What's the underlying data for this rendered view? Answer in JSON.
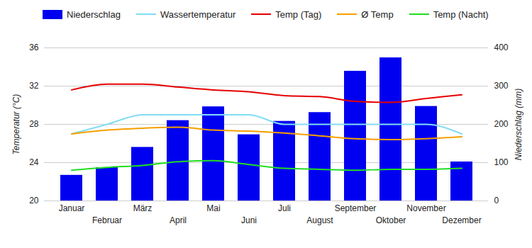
{
  "chart_data": {
    "type": "combo",
    "categories": [
      "Januar",
      "Februar",
      "März",
      "April",
      "Mai",
      "Juni",
      "Juli",
      "August",
      "September",
      "Oktober",
      "November",
      "Dezember"
    ],
    "series": [
      {
        "name": "Niederschlag",
        "type": "bar",
        "axis": "y2",
        "color": "#0000f0",
        "values": [
          67,
          87,
          140,
          210,
          246,
          173,
          208,
          231,
          339,
          374,
          247,
          102
        ]
      },
      {
        "name": "Wassertemperatur",
        "type": "line",
        "color": "#82dcf5",
        "values": [
          27.0,
          28.0,
          29.0,
          29.0,
          29.0,
          29.0,
          28.0,
          28.0,
          28.0,
          28.0,
          28.0,
          27.0
        ]
      },
      {
        "name": "Temp (Tag)",
        "type": "line",
        "color": "#e60000",
        "values": [
          31.6,
          32.2,
          32.2,
          31.9,
          31.6,
          31.4,
          31.0,
          30.9,
          30.4,
          30.3,
          30.7,
          31.1
        ]
      },
      {
        "name": "Ø Temp",
        "type": "line",
        "color": "#f5a000",
        "values": [
          27.0,
          27.4,
          27.6,
          27.7,
          27.4,
          27.3,
          27.1,
          26.8,
          26.5,
          26.4,
          26.5,
          26.7
        ]
      },
      {
        "name": "Temp (Nacht)",
        "type": "line",
        "color": "#22dd22",
        "values": [
          23.2,
          23.5,
          23.7,
          24.1,
          24.2,
          23.8,
          23.4,
          23.3,
          23.2,
          23.3,
          23.3,
          23.4
        ]
      }
    ],
    "ylabel": "Temperatur (°C)",
    "y2label": "Niederschlag (mm)",
    "ylim": [
      20,
      36
    ],
    "yticks": [
      20,
      24,
      28,
      32,
      36
    ],
    "y2lim": [
      0,
      400
    ],
    "y2ticks": [
      0,
      100,
      200,
      300,
      400
    ],
    "grid": true,
    "legend": "top"
  }
}
